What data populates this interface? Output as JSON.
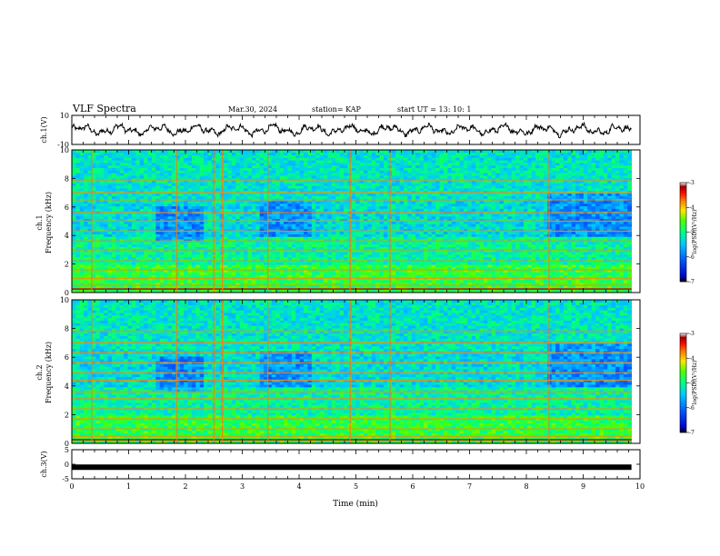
{
  "header": {
    "title": "VLF Spectra",
    "date": "Mar.30, 2024",
    "station": "station= KAP",
    "start": "start  UT  =   13: 10: 1"
  },
  "colors": {
    "waveform": "#000000",
    "colormap": [
      "#ffffff",
      "#9b0000",
      "#ff0000",
      "#ff7b00",
      "#ffe600",
      "#4cff00",
      "#00ff80",
      "#00d0ff",
      "#0060ff",
      "#0000c8",
      "#000000"
    ]
  },
  "chart_data": [
    {
      "type": "line",
      "panel": "ch1-waveform",
      "ylabel": "ch.1(V)",
      "ylim": [
        -10,
        10
      ],
      "yticks": [
        "10",
        "-10"
      ],
      "xlim": [
        0,
        10
      ],
      "description_of_trace": "noisy oscillating waveform roughly between -5 and 5 V"
    },
    {
      "type": "heatmap",
      "panel": "ch1-spectrogram",
      "ylabel_top": "ch.1",
      "ylabel": "Frequency (kHz)",
      "ylim": [
        0,
        10
      ],
      "yticks": [
        "0",
        "2",
        "4",
        "6",
        "8",
        "10"
      ],
      "xlim": [
        0,
        10
      ],
      "colorbar": {
        "label": "log(PSD)(V²/Hz)",
        "range": [
          -7,
          -3
        ],
        "ticks": [
          "-3",
          "-4",
          "-5",
          "-6",
          "-7"
        ]
      },
      "horizontal_lines_khz": [
        0.5,
        1.0,
        1.6,
        2.2,
        3.0,
        3.6,
        4.3,
        5.0,
        5.6,
        6.5,
        7.0,
        7.9
      ],
      "vertical_lines_min": [
        0.35,
        1.85,
        2.5,
        2.65,
        3.45,
        4.9,
        5.6,
        8.4
      ]
    },
    {
      "type": "heatmap",
      "panel": "ch2-spectrogram",
      "ylabel_top": "ch.2",
      "ylabel": "Frequency (kHz)",
      "ylim": [
        0,
        10
      ],
      "yticks": [
        "0",
        "2",
        "4",
        "6",
        "8",
        "10"
      ],
      "xlim": [
        0,
        10
      ],
      "colorbar": {
        "label": "log(PSD)(V²/Hz)",
        "range": [
          -7,
          -3
        ],
        "ticks": [
          "-3",
          "-4",
          "-5",
          "-6",
          "-7"
        ]
      },
      "horizontal_lines_khz": [
        0.5,
        1.0,
        1.7,
        2.4,
        3.1,
        3.6,
        4.4,
        4.9,
        5.6,
        6.3,
        7.0,
        7.8
      ],
      "vertical_lines_min": [
        0.35,
        1.85,
        2.5,
        2.65,
        3.45,
        4.9,
        5.6,
        8.4
      ]
    },
    {
      "type": "line",
      "panel": "ch3-waveform",
      "ylabel": "ch.3(V)",
      "ylim": [
        -5,
        5
      ],
      "yticks": [
        "5",
        "0",
        "-5"
      ],
      "xlim": [
        0,
        10
      ],
      "constant_value": -1,
      "xlabel": "Time (min)",
      "xticks": [
        "0",
        "1",
        "2",
        "3",
        "4",
        "5",
        "6",
        "7",
        "8",
        "9",
        "10"
      ]
    }
  ]
}
